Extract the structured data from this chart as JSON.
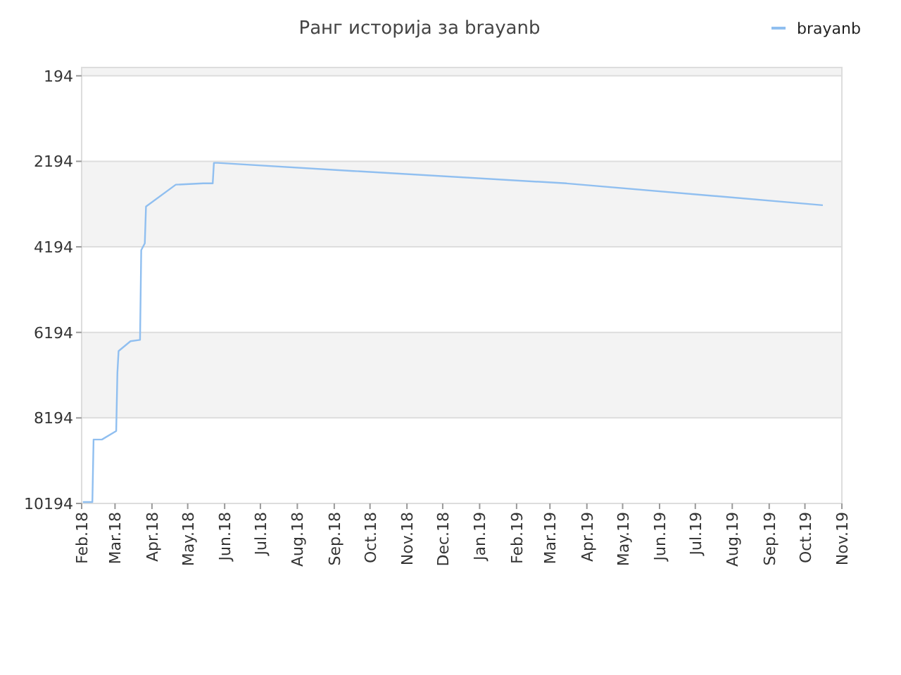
{
  "chart_data": {
    "type": "line",
    "title": "Ранг историја за brayanb",
    "legend": "top right",
    "grid": "y",
    "ylim": [
      10194,
      0
    ],
    "yticks": [
      194,
      2194,
      4194,
      6194,
      8194,
      10194
    ],
    "xlim": [
      "2018-02-01",
      "2019-11-01"
    ],
    "xticks": [
      {
        "value": "2018-02-01",
        "label": "Feb.18"
      },
      {
        "value": "2018-03-01",
        "label": "Mar.18"
      },
      {
        "value": "2018-04-01",
        "label": "Apr.18"
      },
      {
        "value": "2018-05-01",
        "label": "May.18"
      },
      {
        "value": "2018-06-01",
        "label": "Jun.18"
      },
      {
        "value": "2018-07-01",
        "label": "Jul.18"
      },
      {
        "value": "2018-08-01",
        "label": "Aug.18"
      },
      {
        "value": "2018-09-01",
        "label": "Sep.18"
      },
      {
        "value": "2018-10-01",
        "label": "Oct.18"
      },
      {
        "value": "2018-11-01",
        "label": "Nov.18"
      },
      {
        "value": "2018-12-01",
        "label": "Dec.18"
      },
      {
        "value": "2019-01-01",
        "label": "Jan.19"
      },
      {
        "value": "2019-02-01",
        "label": "Feb.19"
      },
      {
        "value": "2019-03-01",
        "label": "Mar.19"
      },
      {
        "value": "2019-04-01",
        "label": "Apr.19"
      },
      {
        "value": "2019-05-01",
        "label": "May.19"
      },
      {
        "value": "2019-06-01",
        "label": "Jun.19"
      },
      {
        "value": "2019-07-01",
        "label": "Jul.19"
      },
      {
        "value": "2019-08-01",
        "label": "Aug.19"
      },
      {
        "value": "2019-09-01",
        "label": "Sep.19"
      },
      {
        "value": "2019-10-01",
        "label": "Oct.19"
      },
      {
        "value": "2019-11-01",
        "label": "Nov.19"
      }
    ],
    "x": [
      "2018-02-02",
      "2018-02-10",
      "2018-02-11",
      "2018-02-18",
      "2018-03-02",
      "2018-03-03",
      "2018-03-04",
      "2018-03-14",
      "2018-03-22",
      "2018-03-23",
      "2018-03-26",
      "2018-03-27",
      "2018-04-21",
      "2018-05-14",
      "2018-05-22",
      "2018-05-23",
      "2018-05-26",
      "2018-09-17",
      "2019-03-15",
      "2019-10-16"
    ],
    "series": [
      {
        "name": "brayanb",
        "color": "#90bff0",
        "values": [
          10160,
          10160,
          8700,
          8700,
          8500,
          7140,
          6630,
          6400,
          6370,
          4270,
          4110,
          3250,
          2740,
          2710,
          2710,
          2230,
          2230,
          2420,
          2710,
          3220
        ]
      }
    ]
  }
}
